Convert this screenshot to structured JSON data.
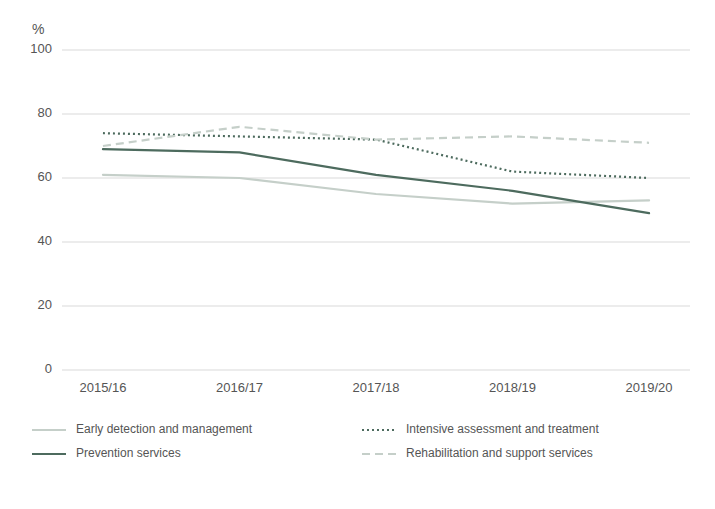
{
  "chart_data": {
    "type": "line",
    "y_label": "%",
    "categories": [
      "2015/16",
      "2016/17",
      "2017/18",
      "2018/19",
      "2019/20"
    ],
    "series": [
      {
        "name": "Early detection and management",
        "color": "#c5cfc9",
        "line_style": "solid",
        "values": [
          61,
          60,
          55,
          52,
          53
        ]
      },
      {
        "name": "Intensive assessment and treatment",
        "color": "#4d6b5e",
        "line_style": "dotted",
        "values": [
          74,
          73,
          72,
          62,
          60
        ]
      },
      {
        "name": "Prevention services",
        "color": "#4d6b5e",
        "line_style": "solid",
        "values": [
          69,
          68,
          61,
          56,
          49
        ]
      },
      {
        "name": "Rehabilitation and support services",
        "color": "#c5cfc9",
        "line_style": "dashed",
        "values": [
          70,
          76,
          72,
          73,
          71
        ]
      }
    ],
    "ylim": [
      0,
      100
    ],
    "yticks": [
      0,
      20,
      40,
      60,
      80,
      100
    ],
    "grid": true,
    "legend": "bottom"
  }
}
